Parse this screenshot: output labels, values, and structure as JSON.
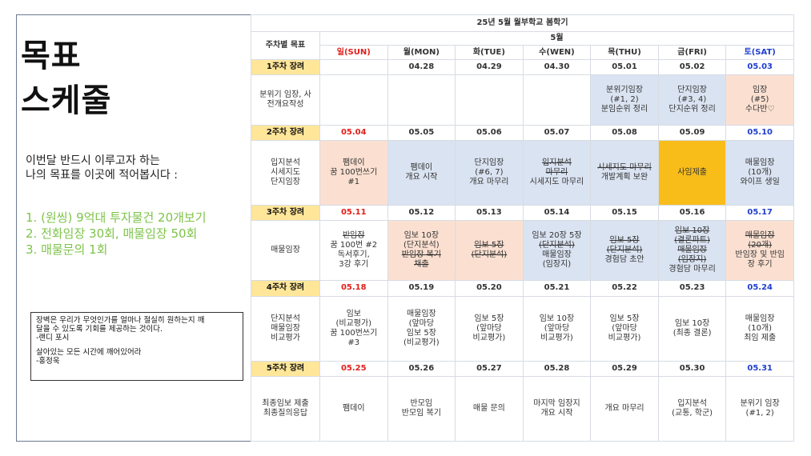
{
  "page": {
    "title_line1": "목표",
    "title_line2": "스케줄",
    "subtitle_line1": "이번달 반드시 이루고자 하는",
    "subtitle_line2": "나의 목표를 이곳에 적어봅시다 :",
    "goals": [
      "1.  (원씽) 9억대 투자물건 20개보기",
      "2.  전화임장 30회, 매물임장 50회",
      "3.  매물문의 1회"
    ],
    "quote1": "장벽은 우리가 무엇인가를 얼마나 절실히 원하는지 깨\n달을 수 있도록 기회를 제공하는 것이다.\n-랜디 포시",
    "quote2": "살아있는 모든 시간에 깨어있어라\n-홍정욱",
    "colors": {
      "week_bg": "#ffe699",
      "blue_cell": "#dae3f1",
      "peach_cell": "#fbe0d1",
      "orange_cell": "#f9bd1a",
      "sunday": "#e0201b",
      "saturday": "#1f3fcf",
      "goals": "#7ec34a"
    }
  },
  "schedule": {
    "heading": "25년 5월 월부학교 봄학기",
    "month": "5월",
    "week_goal_header": "주차별 목표",
    "days": [
      "일(SUN)",
      "월(MON)",
      "화(TUE)",
      "수(WEN)",
      "목(THU)",
      "금(FRI)",
      "토(SAT)"
    ],
    "weeks": [
      {
        "label": "1주차 장려",
        "goal": "분위기 임장, 사\n전개요작성",
        "dates": [
          "",
          "04.28",
          "04.29",
          "04.30",
          "05.01",
          "05.02",
          "05.03"
        ],
        "tasks": [
          "",
          "",
          "",
          "",
          "분위기임장\n(#1, 2)\n분임순위 정리",
          "단지임장\n(#3, 4)\n단지순위 정리",
          "임장\n(#5)\n수다반♡"
        ]
      },
      {
        "label": "2주차 장려",
        "goal": "입지분석\n시세지도\n단지임장",
        "dates": [
          "05.04",
          "05.05",
          "05.06",
          "05.07",
          "05.08",
          "05.09",
          "05.10"
        ],
        "tasks": [
          "팸데이\n꿈 100번쓰기\n#1",
          "팸데이\n개요 시작",
          "단지임장\n(#6, 7)\n개요 마무리",
          "입지분석\n마무리\n시세지도 마무리",
          "시세지도 마무리\n개발계획 보완",
          "사임제출",
          "매물임장\n(10개)\n와이프 생일"
        ]
      },
      {
        "label": "3주차 장려",
        "goal": "매물임장",
        "dates": [
          "05.11",
          "05.12",
          "05.13",
          "05.14",
          "05.15",
          "05.16",
          "05.17"
        ],
        "tasks": [
          "반임장\n꿈 100번 #2\n독서후기,\n3강 후기",
          "임보 10장\n(단지분석)\n반임장 복기\n채출",
          "임보 5장\n(단지분석)",
          "임보 20장 5장\n(단지분석)\n매물임장\n(임장지)",
          "임보 5장\n(단지분석)\n경험담 초안",
          "임보 10장\n(결론파트)\n매물임장\n(임장지)\n경험담 마무리",
          "매물임장\n(20개)\n반임장 및 반임\n장 후기"
        ]
      },
      {
        "label": "4주차 장려",
        "goal": "단지분석\n매물임장\n비교평가",
        "dates": [
          "05.18",
          "05.19",
          "05.20",
          "05.21",
          "05.22",
          "05.23",
          "05.24"
        ],
        "tasks": [
          "임보\n(비교평가)\n꿈 100번쓰기\n#3",
          "매물임장\n(앞마당\n임보 5장\n(비교평가)",
          "임보 5장\n(앞마당\n비교평가)",
          "임보 10장\n(앞마당\n비교평가)",
          "임보 5장\n(앞마당\n비교평가)",
          "임보 10장\n(최종 결론)",
          "매물임장\n(10개)\n최임 제출"
        ]
      },
      {
        "label": "5주차 장려",
        "goal": "최종임보 제출\n최종질의응답",
        "dates": [
          "05.25",
          "05.26",
          "05.27",
          "05.28",
          "05.29",
          "05.30",
          "05.31"
        ],
        "tasks": [
          "팸데이",
          "반모임\n반모임 복기",
          "매물 문의",
          "마지막 임장지\n개요 시작",
          "개요 마무리",
          "입지분석\n(교통, 학군)",
          "분위기 임장\n(#1, 2)"
        ]
      }
    ]
  }
}
